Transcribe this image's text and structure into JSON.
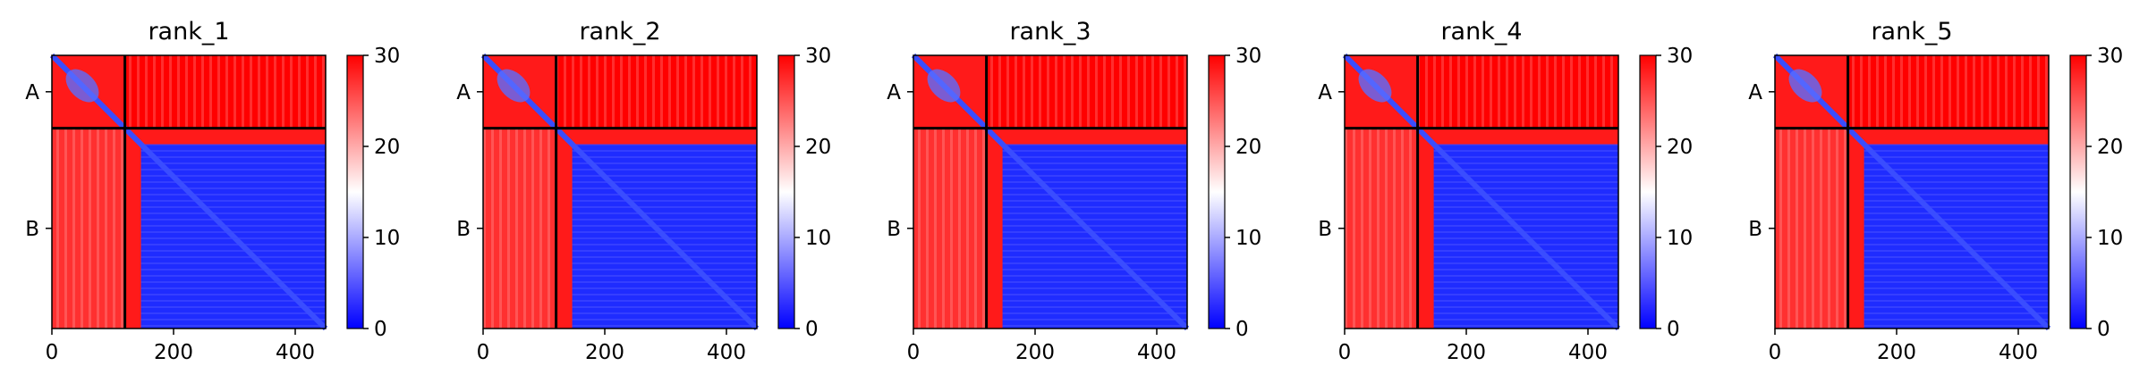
{
  "chart_data": [
    {
      "type": "heatmap",
      "title": "rank_1",
      "xticks": [
        0,
        200,
        400
      ],
      "yticklabels": [
        "A",
        "B"
      ],
      "xlim": [
        0,
        450
      ],
      "ylim": [
        450,
        0
      ],
      "chain_boundary": 120,
      "colorbar": {
        "min": 0,
        "max": 30,
        "ticks": [
          0,
          10,
          20,
          30
        ],
        "colormap": [
          "#0000ff",
          "#ffffff",
          "#ff0000"
        ]
      }
    },
    {
      "type": "heatmap",
      "title": "rank_2",
      "xticks": [
        0,
        200,
        400
      ],
      "yticklabels": [
        "A",
        "B"
      ],
      "xlim": [
        0,
        450
      ],
      "ylim": [
        450,
        0
      ],
      "chain_boundary": 120,
      "colorbar": {
        "min": 0,
        "max": 30,
        "ticks": [
          0,
          10,
          20,
          30
        ],
        "colormap": [
          "#0000ff",
          "#ffffff",
          "#ff0000"
        ]
      }
    },
    {
      "type": "heatmap",
      "title": "rank_3",
      "xticks": [
        0,
        200,
        400
      ],
      "yticklabels": [
        "A",
        "B"
      ],
      "xlim": [
        0,
        450
      ],
      "ylim": [
        450,
        0
      ],
      "chain_boundary": 120,
      "colorbar": {
        "min": 0,
        "max": 30,
        "ticks": [
          0,
          10,
          20,
          30
        ],
        "colormap": [
          "#0000ff",
          "#ffffff",
          "#ff0000"
        ]
      }
    },
    {
      "type": "heatmap",
      "title": "rank_4",
      "xticks": [
        0,
        200,
        400
      ],
      "yticklabels": [
        "A",
        "B"
      ],
      "xlim": [
        0,
        450
      ],
      "ylim": [
        450,
        0
      ],
      "chain_boundary": 120,
      "colorbar": {
        "min": 0,
        "max": 30,
        "ticks": [
          0,
          10,
          20,
          30
        ],
        "colormap": [
          "#0000ff",
          "#ffffff",
          "#ff0000"
        ]
      }
    },
    {
      "type": "heatmap",
      "title": "rank_5",
      "xticks": [
        0,
        200,
        400
      ],
      "yticklabels": [
        "A",
        "B"
      ],
      "xlim": [
        0,
        450
      ],
      "ylim": [
        450,
        0
      ],
      "chain_boundary": 120,
      "colorbar": {
        "min": 0,
        "max": 30,
        "ticks": [
          0,
          10,
          20,
          30
        ],
        "colormap": [
          "#0000ff",
          "#ffffff",
          "#ff0000"
        ]
      }
    }
  ]
}
